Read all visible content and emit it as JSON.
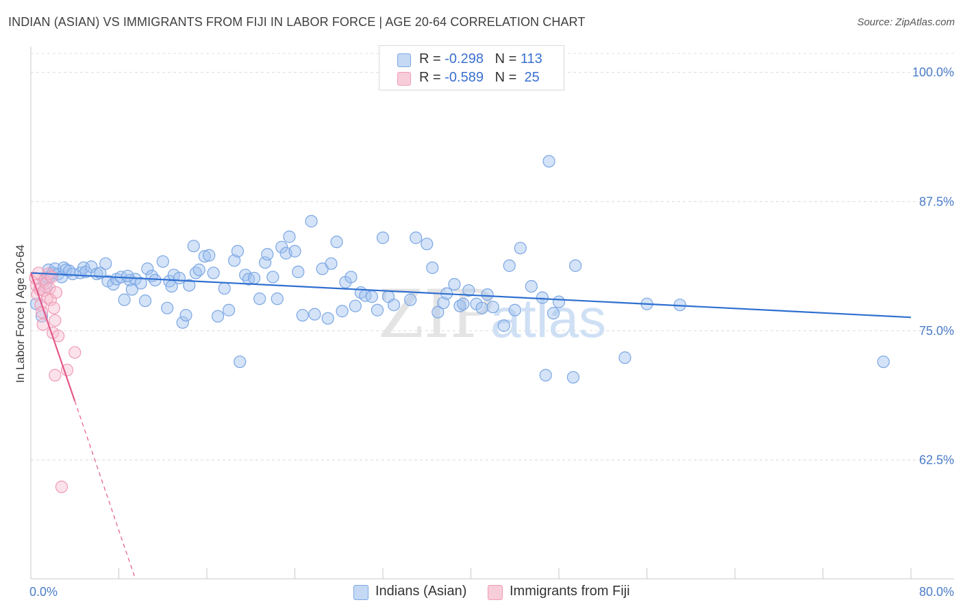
{
  "title": "INDIAN (ASIAN) VS IMMIGRANTS FROM FIJI IN LABOR FORCE | AGE 20-64 CORRELATION CHART",
  "source": "Source: ZipAtlas.com",
  "legend": {
    "rows": [
      {
        "r_label": "R = ",
        "r_value": "-0.298",
        "n_label": "N = ",
        "n_value": "113",
        "color": "#9fc0ef"
      },
      {
        "r_label": "R = ",
        "r_value": "-0.589",
        "n_label": "N = ",
        "n_value": " 25",
        "color": "#f4b0c6"
      }
    ]
  },
  "bottom_legend": [
    {
      "label": "Indians (Asian)",
      "color": "#aac6ef"
    },
    {
      "label": "Immigrants from Fiji",
      "color": "#f6c2d3"
    }
  ],
  "watermark": {
    "zip": "ZIP",
    "atlas": "atlas"
  },
  "chart_data": {
    "type": "scatter",
    "ylabel": "In Labor Force | Age 20-64",
    "xlabel": "",
    "xlim": [
      0,
      80
    ],
    "ylim": [
      51,
      102.5
    ],
    "x_tick_labels": [
      {
        "value": 0,
        "label": "0.0%"
      },
      {
        "value": 80,
        "label": "80.0%"
      }
    ],
    "y_tick_labels": [
      {
        "value": 100,
        "label": "100.0%"
      },
      {
        "value": 87.5,
        "label": "87.5%"
      },
      {
        "value": 75,
        "label": "75.0%"
      },
      {
        "value": 62.5,
        "label": "62.5%"
      }
    ],
    "y_gridlines": [
      100,
      87.5,
      75,
      62.5
    ],
    "x_minor_ticks": [
      8,
      16,
      24,
      32,
      40,
      48,
      56,
      64,
      72
    ],
    "grid": true,
    "series": [
      {
        "name": "Indians (Asian)",
        "color": "#9fc0ef",
        "stroke": "#7aa6e3",
        "trend": {
          "x": [
            0,
            80
          ],
          "y": [
            80.6,
            76.3
          ],
          "color": "#2e6fd0"
        },
        "points": [
          [
            0.5,
            77.6
          ],
          [
            1.0,
            76.4
          ],
          [
            1.2,
            79.8
          ],
          [
            1.4,
            79.2
          ],
          [
            1.5,
            80.2
          ],
          [
            1.6,
            80.9
          ],
          [
            1.8,
            80.3
          ],
          [
            2.0,
            80.6
          ],
          [
            2.2,
            81.0
          ],
          [
            2.5,
            80.5
          ],
          [
            2.8,
            80.2
          ],
          [
            3.0,
            81.1
          ],
          [
            3.2,
            80.9
          ],
          [
            3.5,
            80.8
          ],
          [
            3.8,
            80.5
          ],
          [
            4.5,
            80.6
          ],
          [
            4.8,
            81.1
          ],
          [
            5.0,
            80.7
          ],
          [
            5.5,
            81.2
          ],
          [
            6.0,
            80.5
          ],
          [
            6.3,
            80.6
          ],
          [
            6.8,
            81.5
          ],
          [
            7.0,
            79.8
          ],
          [
            7.5,
            79.5
          ],
          [
            7.8,
            80.0
          ],
          [
            8.2,
            80.2
          ],
          [
            8.5,
            78.0
          ],
          [
            9.0,
            79.9
          ],
          [
            9.2,
            79.0
          ],
          [
            9.5,
            80.0
          ],
          [
            8.8,
            80.3
          ],
          [
            10.0,
            79.6
          ],
          [
            10.4,
            77.9
          ],
          [
            10.6,
            81.0
          ],
          [
            11.0,
            80.3
          ],
          [
            11.3,
            79.9
          ],
          [
            12.0,
            81.7
          ],
          [
            12.4,
            77.2
          ],
          [
            12.6,
            79.8
          ],
          [
            12.8,
            79.3
          ],
          [
            13.0,
            80.4
          ],
          [
            13.5,
            80.1
          ],
          [
            13.8,
            75.8
          ],
          [
            14.1,
            76.5
          ],
          [
            14.4,
            79.4
          ],
          [
            14.8,
            83.2
          ],
          [
            15.0,
            80.6
          ],
          [
            15.3,
            80.9
          ],
          [
            15.8,
            82.2
          ],
          [
            16.2,
            82.3
          ],
          [
            16.6,
            80.6
          ],
          [
            17.0,
            76.4
          ],
          [
            17.6,
            79.1
          ],
          [
            18.0,
            77.0
          ],
          [
            18.5,
            81.8
          ],
          [
            18.8,
            82.7
          ],
          [
            19.0,
            72.0
          ],
          [
            19.5,
            80.4
          ],
          [
            19.8,
            80.0
          ],
          [
            20.3,
            80.1
          ],
          [
            20.8,
            78.1
          ],
          [
            21.3,
            81.6
          ],
          [
            21.5,
            82.4
          ],
          [
            22.0,
            80.2
          ],
          [
            22.4,
            78.1
          ],
          [
            22.8,
            83.1
          ],
          [
            23.2,
            82.5
          ],
          [
            23.5,
            84.1
          ],
          [
            24.0,
            82.7
          ],
          [
            24.3,
            80.7
          ],
          [
            24.7,
            76.5
          ],
          [
            25.5,
            85.6
          ],
          [
            25.8,
            76.6
          ],
          [
            26.5,
            81.0
          ],
          [
            27.0,
            76.2
          ],
          [
            27.3,
            81.5
          ],
          [
            27.8,
            83.6
          ],
          [
            28.3,
            76.9
          ],
          [
            28.6,
            79.7
          ],
          [
            29.1,
            80.2
          ],
          [
            29.5,
            77.4
          ],
          [
            30.0,
            78.7
          ],
          [
            30.4,
            78.4
          ],
          [
            31.0,
            78.3
          ],
          [
            31.5,
            77.0
          ],
          [
            32.0,
            84.0
          ],
          [
            32.5,
            78.3
          ],
          [
            33.0,
            77.5
          ],
          [
            34.5,
            78.0
          ],
          [
            35.0,
            84.0
          ],
          [
            36.0,
            83.4
          ],
          [
            36.5,
            81.1
          ],
          [
            37.0,
            76.8
          ],
          [
            37.5,
            77.7
          ],
          [
            37.8,
            78.6
          ],
          [
            38.5,
            79.5
          ],
          [
            39.0,
            77.4
          ],
          [
            39.3,
            77.6
          ],
          [
            39.8,
            78.9
          ],
          [
            40.5,
            77.6
          ],
          [
            41.0,
            77.2
          ],
          [
            41.5,
            78.5
          ],
          [
            42.0,
            77.3
          ],
          [
            43.0,
            75.5
          ],
          [
            43.5,
            81.3
          ],
          [
            44.0,
            77.0
          ],
          [
            44.5,
            83.0
          ],
          [
            45.5,
            79.3
          ],
          [
            46.5,
            78.2
          ],
          [
            46.8,
            70.7
          ],
          [
            47.1,
            91.4
          ],
          [
            47.5,
            76.7
          ],
          [
            48.0,
            77.8
          ],
          [
            49.3,
            70.5
          ],
          [
            49.5,
            81.3
          ],
          [
            54.0,
            72.4
          ],
          [
            56.0,
            77.6
          ],
          [
            59.0,
            77.5
          ],
          [
            77.5,
            72.0
          ]
        ]
      },
      {
        "name": "Immigrants from Fiji",
        "color": "#f6bfd1",
        "stroke": "#ef9ab5",
        "trend": {
          "x": [
            0,
            4.0
          ],
          "y": [
            80.6,
            68.2
          ],
          "color": "#e4578a",
          "dashed_x": [
            4.0,
            9.5
          ],
          "dashed_y": [
            68.2,
            51.0
          ]
        },
        "points": [
          [
            0.4,
            80.1
          ],
          [
            0.5,
            79.4
          ],
          [
            0.6,
            78.5
          ],
          [
            0.7,
            80.6
          ],
          [
            0.8,
            79.0
          ],
          [
            0.9,
            77.5
          ],
          [
            1.0,
            76.8
          ],
          [
            1.1,
            75.6
          ],
          [
            1.2,
            78.9
          ],
          [
            1.3,
            80.0
          ],
          [
            1.4,
            79.6
          ],
          [
            1.5,
            78.2
          ],
          [
            1.6,
            80.5
          ],
          [
            1.7,
            79.1
          ],
          [
            1.8,
            78.0
          ],
          [
            1.9,
            80.2
          ],
          [
            2.0,
            74.8
          ],
          [
            2.1,
            77.2
          ],
          [
            2.2,
            76.0
          ],
          [
            2.3,
            78.7
          ],
          [
            2.5,
            74.5
          ],
          [
            2.2,
            70.7
          ],
          [
            3.3,
            71.2
          ],
          [
            4.0,
            72.9
          ],
          [
            2.8,
            59.9
          ]
        ]
      }
    ]
  }
}
